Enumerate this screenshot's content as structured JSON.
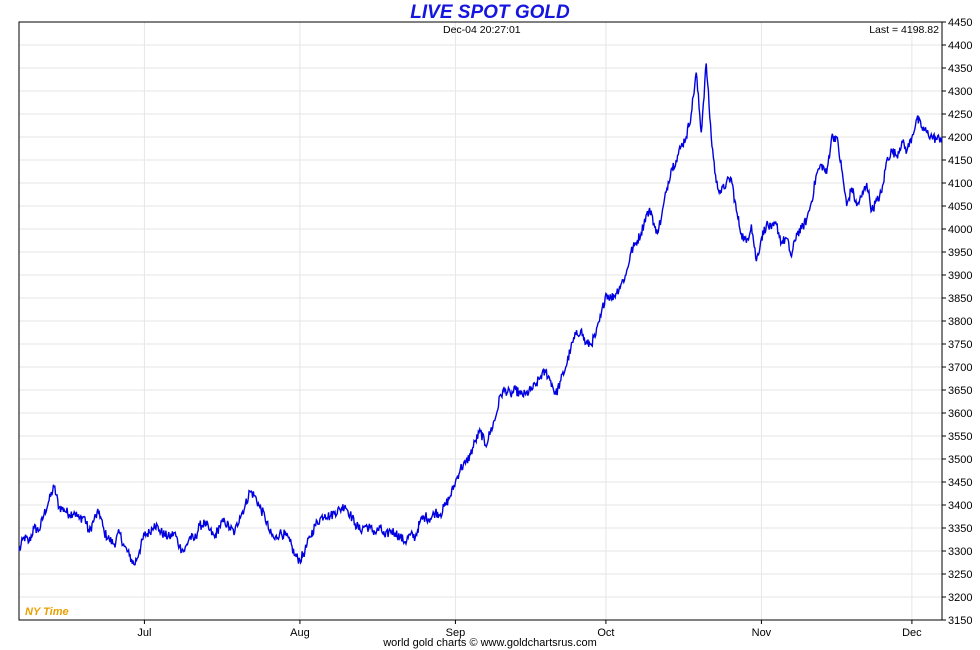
{
  "chart_data": {
    "type": "line",
    "title": "LIVE SPOT GOLD",
    "timestamp": "Dec-04  20:27:01",
    "last_label": "Last = 4198.82",
    "time_zone_label": "NY Time",
    "footer": "world gold charts © www.goldchartsrus.com",
    "xlabel": "",
    "ylabel": "",
    "ylim": [
      3150,
      4450
    ],
    "y_ticks": [
      3150,
      3200,
      3250,
      3300,
      3350,
      3400,
      3450,
      3500,
      3550,
      3600,
      3650,
      3700,
      3750,
      3800,
      3850,
      3900,
      3950,
      4000,
      4050,
      4100,
      4150,
      4200,
      4250,
      4300,
      4350,
      4400,
      4450
    ],
    "x_ticks": [
      {
        "label": "Jul",
        "day": 25
      },
      {
        "label": "Aug",
        "day": 56
      },
      {
        "label": "Sep",
        "day": 87
      },
      {
        "label": "Oct",
        "day": 117
      },
      {
        "label": "Nov",
        "day": 148
      },
      {
        "label": "Dec",
        "day": 178
      }
    ],
    "xlim_days": [
      0,
      184
    ],
    "line_color": "#0000e0",
    "series": [
      {
        "values_by_day": [
          [
            0,
            3300
          ],
          [
            1,
            3330
          ],
          [
            2,
            3320
          ],
          [
            3,
            3350
          ],
          [
            4,
            3345
          ],
          [
            5,
            3380
          ],
          [
            6,
            3410
          ],
          [
            7,
            3440
          ],
          [
            8,
            3395
          ],
          [
            9,
            3390
          ],
          [
            10,
            3380
          ],
          [
            11,
            3385
          ],
          [
            12,
            3370
          ],
          [
            13,
            3375
          ],
          [
            14,
            3340
          ],
          [
            15,
            3370
          ],
          [
            16,
            3385
          ],
          [
            17,
            3340
          ],
          [
            18,
            3325
          ],
          [
            19,
            3315
          ],
          [
            20,
            3340
          ],
          [
            21,
            3310
          ],
          [
            22,
            3290
          ],
          [
            23,
            3270
          ],
          [
            24,
            3300
          ],
          [
            25,
            3335
          ],
          [
            26,
            3340
          ],
          [
            27,
            3360
          ],
          [
            28,
            3345
          ],
          [
            29,
            3335
          ],
          [
            30,
            3330
          ],
          [
            31,
            3340
          ],
          [
            32,
            3310
          ],
          [
            33,
            3300
          ],
          [
            34,
            3330
          ],
          [
            35,
            3325
          ],
          [
            36,
            3355
          ],
          [
            37,
            3360
          ],
          [
            38,
            3345
          ],
          [
            39,
            3330
          ],
          [
            40,
            3355
          ],
          [
            41,
            3365
          ],
          [
            42,
            3350
          ],
          [
            43,
            3340
          ],
          [
            44,
            3375
          ],
          [
            45,
            3395
          ],
          [
            46,
            3430
          ],
          [
            47,
            3420
          ],
          [
            48,
            3395
          ],
          [
            49,
            3375
          ],
          [
            50,
            3340
          ],
          [
            51,
            3325
          ],
          [
            52,
            3340
          ],
          [
            53,
            3335
          ],
          [
            54,
            3320
          ],
          [
            55,
            3290
          ],
          [
            56,
            3280
          ],
          [
            57,
            3300
          ],
          [
            58,
            3330
          ],
          [
            59,
            3355
          ],
          [
            60,
            3370
          ],
          [
            61,
            3380
          ],
          [
            62,
            3375
          ],
          [
            63,
            3385
          ],
          [
            64,
            3390
          ],
          [
            65,
            3400
          ],
          [
            66,
            3380
          ],
          [
            67,
            3360
          ],
          [
            68,
            3345
          ],
          [
            69,
            3355
          ],
          [
            70,
            3350
          ],
          [
            71,
            3340
          ],
          [
            72,
            3350
          ],
          [
            73,
            3330
          ],
          [
            74,
            3345
          ],
          [
            75,
            3340
          ],
          [
            76,
            3330
          ],
          [
            77,
            3320
          ],
          [
            78,
            3335
          ],
          [
            79,
            3330
          ],
          [
            80,
            3365
          ],
          [
            81,
            3375
          ],
          [
            82,
            3370
          ],
          [
            83,
            3385
          ],
          [
            84,
            3380
          ],
          [
            85,
            3400
          ],
          [
            86,
            3420
          ],
          [
            87,
            3450
          ],
          [
            88,
            3480
          ],
          [
            89,
            3490
          ],
          [
            90,
            3510
          ],
          [
            91,
            3540
          ],
          [
            92,
            3560
          ],
          [
            93,
            3530
          ],
          [
            94,
            3560
          ],
          [
            95,
            3590
          ],
          [
            96,
            3640
          ],
          [
            97,
            3650
          ],
          [
            98,
            3640
          ],
          [
            99,
            3650
          ],
          [
            100,
            3640
          ],
          [
            101,
            3640
          ],
          [
            102,
            3650
          ],
          [
            103,
            3660
          ],
          [
            104,
            3680
          ],
          [
            105,
            3690
          ],
          [
            106,
            3670
          ],
          [
            107,
            3640
          ],
          [
            108,
            3670
          ],
          [
            109,
            3700
          ],
          [
            110,
            3740
          ],
          [
            111,
            3770
          ],
          [
            112,
            3780
          ],
          [
            113,
            3750
          ],
          [
            114,
            3750
          ],
          [
            115,
            3770
          ],
          [
            116,
            3810
          ],
          [
            117,
            3860
          ],
          [
            118,
            3850
          ],
          [
            119,
            3860
          ],
          [
            120,
            3880
          ],
          [
            121,
            3900
          ],
          [
            122,
            3950
          ],
          [
            123,
            3970
          ],
          [
            124,
            3990
          ],
          [
            125,
            4030
          ],
          [
            126,
            4040
          ],
          [
            127,
            3990
          ],
          [
            128,
            4020
          ],
          [
            129,
            4080
          ],
          [
            130,
            4130
          ],
          [
            131,
            4150
          ],
          [
            132,
            4180
          ],
          [
            133,
            4200
          ],
          [
            134,
            4250
          ],
          [
            135,
            4340
          ],
          [
            136,
            4210
          ],
          [
            137,
            4360
          ],
          [
            138,
            4200
          ],
          [
            139,
            4100
          ],
          [
            140,
            4080
          ],
          [
            141,
            4100
          ],
          [
            142,
            4110
          ],
          [
            143,
            4040
          ],
          [
            144,
            3990
          ],
          [
            145,
            3970
          ],
          [
            146,
            4010
          ],
          [
            147,
            3930
          ],
          [
            148,
            3980
          ],
          [
            149,
            4010
          ],
          [
            150,
            4000
          ],
          [
            151,
            4010
          ],
          [
            152,
            3970
          ],
          [
            153,
            3980
          ],
          [
            154,
            3940
          ],
          [
            155,
            3990
          ],
          [
            156,
            4000
          ],
          [
            157,
            4020
          ],
          [
            158,
            4060
          ],
          [
            159,
            4120
          ],
          [
            160,
            4140
          ],
          [
            161,
            4120
          ],
          [
            162,
            4200
          ],
          [
            163,
            4200
          ],
          [
            164,
            4130
          ],
          [
            165,
            4050
          ],
          [
            166,
            4090
          ],
          [
            167,
            4050
          ],
          [
            168,
            4070
          ],
          [
            169,
            4100
          ],
          [
            170,
            4040
          ],
          [
            171,
            4060
          ],
          [
            172,
            4080
          ],
          [
            173,
            4150
          ],
          [
            174,
            4170
          ],
          [
            175,
            4160
          ],
          [
            176,
            4190
          ],
          [
            177,
            4170
          ],
          [
            178,
            4200
          ],
          [
            179,
            4240
          ],
          [
            180,
            4220
          ],
          [
            181,
            4210
          ],
          [
            182,
            4200
          ],
          [
            183,
            4195
          ],
          [
            184,
            4199
          ]
        ]
      }
    ]
  }
}
